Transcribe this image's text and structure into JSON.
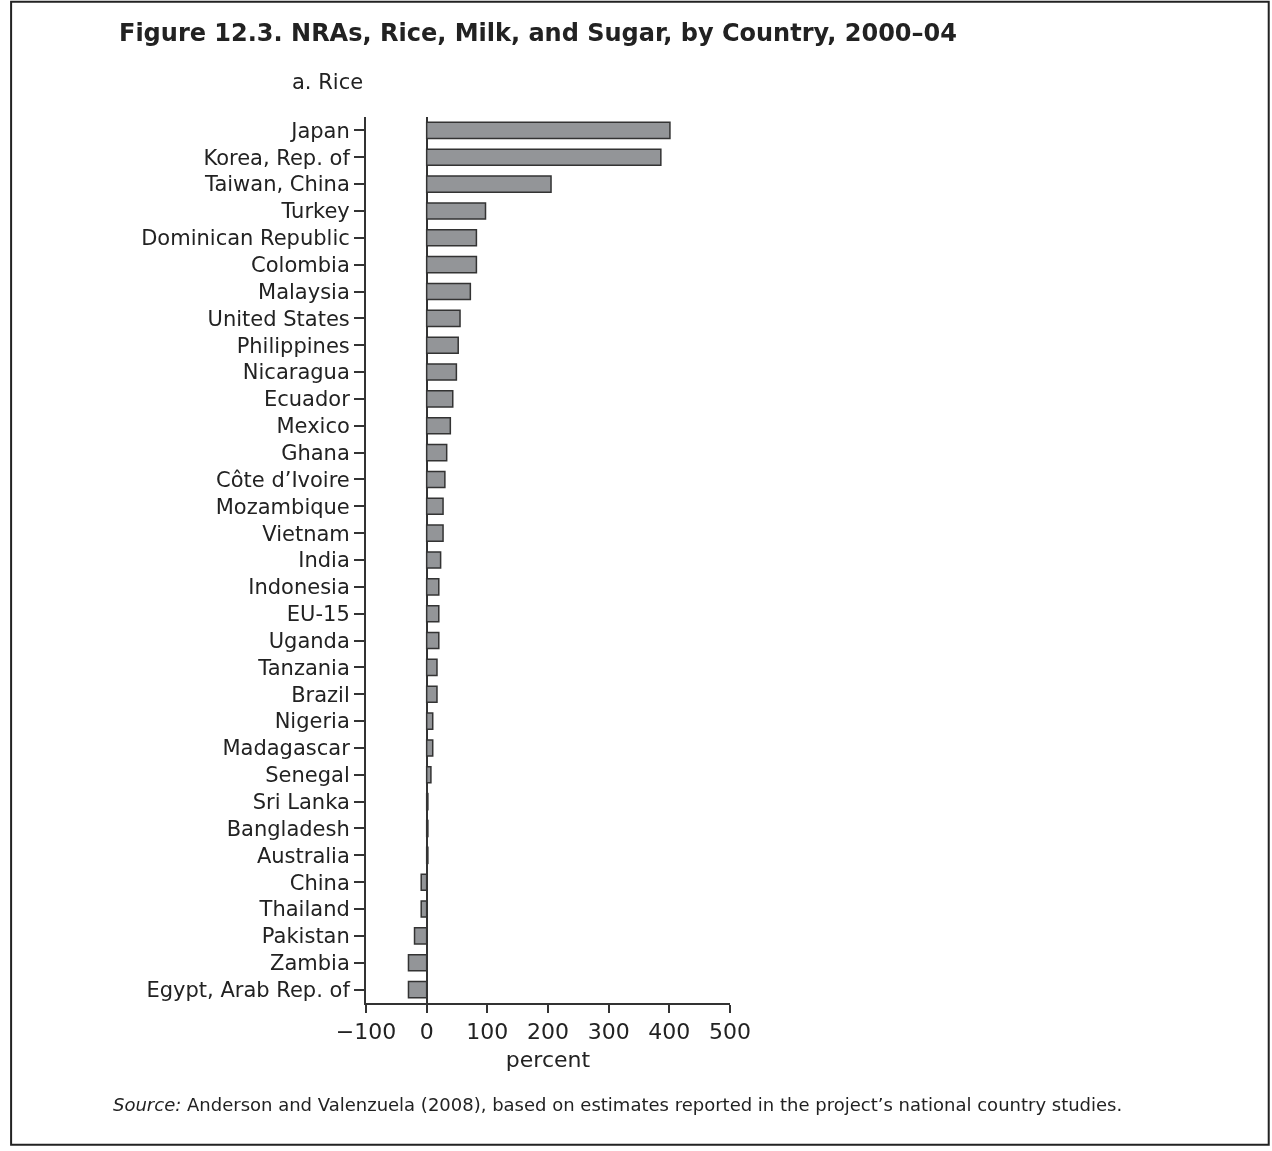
{
  "chart_data": {
    "type": "bar",
    "orientation": "horizontal",
    "title": "Figure 12.3. NRAs, Rice, Milk, and Sugar, by Country, 2000–04",
    "subtitle": "a. Rice",
    "xlabel": "percent",
    "categories": [
      "Japan",
      "Korea, Rep. of",
      "Taiwan, China",
      "Turkey",
      "Dominican Republic",
      "Colombia",
      "Malaysia",
      "United States",
      "Philippines",
      "Nicaragua",
      "Ecuador",
      "Mexico",
      "Ghana",
      "Côte d’Ivoire",
      "Mozambique",
      "Vietnam",
      "India",
      "Indonesia",
      "EU-15",
      "Uganda",
      "Tanzania",
      "Brazil",
      "Nigeria",
      "Madagascar",
      "Senegal",
      "Sri Lanka",
      "Bangladesh",
      "Australia",
      "China",
      "Thailand",
      "Pakistan",
      "Zambia",
      "Egypt, Arab Rep. of"
    ],
    "values": [
      401,
      386,
      205,
      97,
      82,
      82,
      72,
      55,
      52,
      49,
      43,
      39,
      33,
      30,
      27,
      27,
      23,
      20,
      20,
      20,
      17,
      17,
      10,
      10,
      7,
      2,
      2,
      2,
      -9,
      -9,
      -20,
      -30,
      -30
    ],
    "color": "#939598",
    "xlim": [
      -100,
      500
    ],
    "xticks": [
      {
        "value": -100,
        "label": "−100"
      },
      0,
      100,
      200,
      300,
      400,
      500
    ],
    "annotations": [
      "Source: Anderson and Valenzuela (2008), based on estimates reported in the project’s national country studies."
    ]
  }
}
